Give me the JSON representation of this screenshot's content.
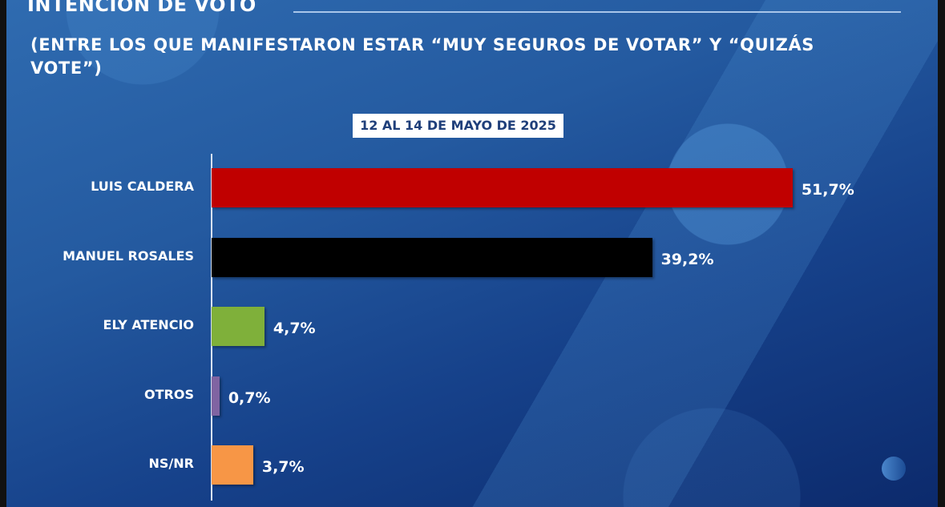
{
  "header": {
    "title": "INTENCIÓN DE VOTO",
    "subtitle": "(ENTRE LOS QUE MANIFESTARON ESTAR “MUY SEGUROS DE VOTAR” Y “QUIZÁS VOTE”)",
    "date_label": "12 AL 14 DE MAYO DE 2025"
  },
  "chart_data": {
    "type": "bar",
    "orientation": "horizontal",
    "title": "INTENCIÓN DE VOTO",
    "categories": [
      "LUIS CALDERA",
      "MANUEL ROSALES",
      "ELY ATENCIO",
      "OTROS",
      "NS/NR"
    ],
    "values": [
      51.7,
      39.2,
      4.7,
      0.7,
      3.7
    ],
    "value_labels": [
      "51,7%",
      "39,2%",
      "4,7%",
      "0,7%",
      "3,7%"
    ],
    "colors": [
      "#c00000",
      "#000000",
      "#7fb03a",
      "#8064a2",
      "#f79646"
    ],
    "xlabel": "",
    "ylabel": "",
    "xlim": [
      0,
      60
    ],
    "grid": false
  }
}
